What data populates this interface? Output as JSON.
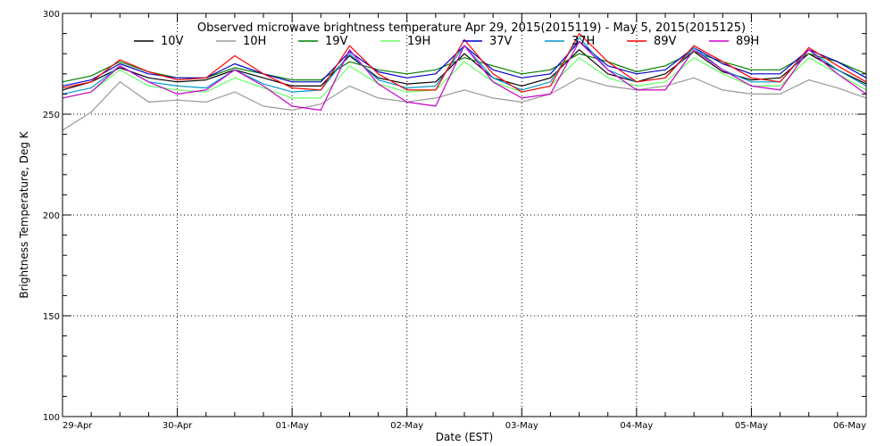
{
  "chart_data": {
    "type": "line",
    "title": "Observed microwave brightness temperature Apr 29, 2015(2015119) - May  5, 2015(2015125)",
    "xlabel": "Date (EST)",
    "ylabel": "Brightness Temperature, Deg K",
    "ylim": [
      100,
      300
    ],
    "xlim": [
      0,
      7
    ],
    "y_ticks": [
      100,
      150,
      200,
      250,
      300
    ],
    "x_tick_positions": [
      0,
      1,
      2,
      3,
      4,
      5,
      6,
      7
    ],
    "x_tick_labels": [
      "29-Apr",
      "30-Apr",
      "01-May",
      "02-May",
      "03-May",
      "04-May",
      "05-May",
      "06-May"
    ],
    "grid": true,
    "legend_position": "top",
    "x_days": [
      0,
      0.25,
      0.5,
      0.75,
      1,
      1.25,
      1.5,
      1.75,
      2,
      2.25,
      2.5,
      2.75,
      3,
      3.25,
      3.5,
      3.75,
      4,
      4.25,
      4.5,
      4.75,
      5,
      5.25,
      5.5,
      5.75,
      6,
      6.25,
      6.5,
      6.75,
      7
    ],
    "series": [
      {
        "name": "10V",
        "color": "#000000",
        "values": [
          262,
          266,
          273,
          268,
          266,
          267,
          272,
          268,
          264,
          264,
          279,
          268,
          265,
          266,
          280,
          268,
          264,
          268,
          282,
          270,
          266,
          270,
          281,
          271,
          267,
          268,
          280,
          272,
          265
        ]
      },
      {
        "name": "10H",
        "color": "#999999",
        "values": [
          242,
          251,
          266,
          256,
          257,
          256,
          261,
          254,
          252,
          255,
          264,
          258,
          256,
          258,
          262,
          258,
          256,
          260,
          268,
          264,
          262,
          264,
          268,
          262,
          260,
          260,
          267,
          263,
          258
        ]
      },
      {
        "name": "19V",
        "color": "#008000",
        "values": [
          266,
          269,
          276,
          271,
          268,
          268,
          273,
          270,
          267,
          267,
          276,
          272,
          270,
          272,
          278,
          274,
          270,
          272,
          280,
          276,
          271,
          274,
          281,
          276,
          272,
          272,
          280,
          276,
          270
        ]
      },
      {
        "name": "19H",
        "color": "#66ff66",
        "values": [
          258,
          261,
          272,
          264,
          262,
          261,
          268,
          263,
          258,
          258,
          274,
          265,
          261,
          262,
          276,
          266,
          261,
          264,
          278,
          268,
          264,
          266,
          278,
          270,
          264,
          264,
          278,
          270,
          262
        ]
      },
      {
        "name": "37V",
        "color": "#0000cc",
        "values": [
          264,
          267,
          275,
          270,
          268,
          268,
          275,
          270,
          266,
          266,
          281,
          271,
          268,
          270,
          284,
          272,
          268,
          270,
          286,
          274,
          270,
          272,
          283,
          275,
          270,
          270,
          282,
          276,
          268
        ]
      },
      {
        "name": "37H",
        "color": "#0099cc",
        "values": [
          260,
          263,
          274,
          266,
          264,
          263,
          272,
          265,
          261,
          262,
          280,
          267,
          263,
          264,
          284,
          268,
          262,
          266,
          288,
          272,
          266,
          268,
          283,
          272,
          266,
          266,
          282,
          272,
          264
        ]
      },
      {
        "name": "89V",
        "color": "#ff0000",
        "values": [
          263,
          266,
          277,
          271,
          267,
          268,
          279,
          270,
          263,
          262,
          284,
          270,
          262,
          262,
          287,
          270,
          261,
          264,
          290,
          276,
          266,
          268,
          284,
          276,
          268,
          266,
          283,
          274,
          266
        ]
      },
      {
        "name": "89H",
        "color": "#cc00cc",
        "values": [
          258,
          261,
          274,
          266,
          260,
          262,
          272,
          264,
          254,
          252,
          282,
          265,
          256,
          254,
          284,
          266,
          258,
          260,
          286,
          272,
          262,
          262,
          282,
          272,
          264,
          262,
          282,
          270,
          260
        ]
      }
    ]
  }
}
